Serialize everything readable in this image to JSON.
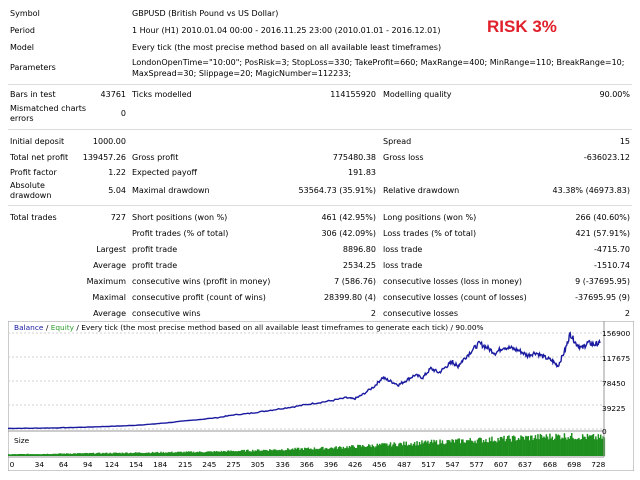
{
  "overlay": {
    "risk_text": "RISK 3%",
    "risk_color": "#e0202a"
  },
  "header": {
    "symbol_label": "Symbol",
    "symbol_value": "GBPUSD (British Pound vs US Dollar)",
    "period_label": "Period",
    "period_value": "1 Hour (H1) 2010.01.04 00:00 - 2016.11.25 23:00 (2010.01.01 - 2016.12.01)",
    "model_label": "Model",
    "model_value": "Every tick (the most precise method based on all available least timeframes)",
    "parameters_label": "Parameters",
    "parameters_line1": "LondonOpenTime=\"10:00\"; PosRisk=3; StopLoss=330; TakeProfit=660; MaxRange=400; MinRange=110; BreakRange=10;",
    "parameters_line2": "MaxSpread=30; Slippage=20; MagicNumber=112233;"
  },
  "stats": {
    "bars_label": "Bars in test",
    "bars_value": "43761",
    "ticks_label": "Ticks modelled",
    "ticks_value": "114155920",
    "quality_label": "Modelling quality",
    "quality_value": "90.00%",
    "mismatch_label_1": "Mismatched charts",
    "mismatch_label_2": "errors",
    "mismatch_value": "0",
    "deposit_label": "Initial deposit",
    "deposit_value": "1000.00",
    "spread_label": "Spread",
    "spread_value": "15",
    "netprofit_label": "Total net profit",
    "netprofit_value": "139457.26",
    "grossprofit_label": "Gross profit",
    "grossprofit_value": "775480.38",
    "grossloss_label": "Gross loss",
    "grossloss_value": "-636023.12",
    "pf_label": "Profit factor",
    "pf_value": "1.22",
    "payoff_label": "Expected payoff",
    "payoff_value": "191.83",
    "absdd_label_1": "Absolute",
    "absdd_label_2": "drawdown",
    "absdd_value": "5.04",
    "maxdd_label": "Maximal drawdown",
    "maxdd_value": "53564.73 (35.91%)",
    "reldd_label": "Relative drawdown",
    "reldd_value": "43.38% (46973.83)",
    "trades_label": "Total trades",
    "trades_value": "727",
    "short_label": "Short positions (won %)",
    "short_value": "461 (42.95%)",
    "long_label": "Long positions (won %)",
    "long_value": "266 (40.60%)",
    "pt_label": "Profit trades (% of total)",
    "pt_value": "306 (42.09%)",
    "lt_label": "Loss trades (% of total)",
    "lt_value": "421 (57.91%)",
    "largest_label": "Largest",
    "lpt_label": "profit trade",
    "lpt_value": "8896.80",
    "llt_label": "loss trade",
    "llt_value": "-4715.70",
    "average_label": "Average",
    "apt_label": "profit trade",
    "apt_value": "2534.25",
    "alt_label": "loss trade",
    "alt_value": "-1510.74",
    "maximum_label": "Maximum",
    "mcw_label": "consecutive wins (profit in money)",
    "mcw_value": "7 (586.76)",
    "mcl_label": "consecutive losses (loss in money)",
    "mcl_value": "9 (-37695.95)",
    "maximal_label": "Maximal",
    "mcp_label": "consecutive profit (count of wins)",
    "mcp_value": "28399.80 (4)",
    "mcll_label": "consecutive losses (count of losses)",
    "mcll_value": "-37695.95 (9)",
    "average2_label": "Average",
    "acw_label": "consecutive wins",
    "acw_value": "2",
    "acl_label": "consecutive losses",
    "acl_value": "2"
  },
  "chart_data": {
    "type": "line",
    "legend": {
      "balance": "Balance",
      "sep1": " / ",
      "equity": "Equity",
      "rest": " / Every tick (the most precise method based on all available least timeframes to generate each tick) / 90.00%"
    },
    "colors": {
      "balance": "#1a1aa0",
      "equity": "#2e9e2e",
      "size_bars": "#1f8f1f",
      "grid": "#d0d0d0"
    },
    "ylim": [
      0,
      156900
    ],
    "yticks": [
      "156900",
      "117675",
      "78450",
      "39225",
      "0"
    ],
    "xticks": [
      "0",
      "34",
      "64",
      "94",
      "124",
      "154",
      "184",
      "215",
      "245",
      "275",
      "305",
      "336",
      "366",
      "396",
      "426",
      "456",
      "487",
      "517",
      "547",
      "577",
      "607",
      "637",
      "668",
      "698",
      "728"
    ],
    "xlim": [
      0,
      740
    ],
    "size_label": "Size",
    "balance_points": [
      [
        0,
        1000
      ],
      [
        30,
        1300
      ],
      [
        60,
        1800
      ],
      [
        90,
        2800
      ],
      [
        120,
        4000
      ],
      [
        150,
        5500
      ],
      [
        180,
        8000
      ],
      [
        200,
        10500
      ],
      [
        230,
        14500
      ],
      [
        260,
        18500
      ],
      [
        280,
        23000
      ],
      [
        300,
        25500
      ],
      [
        320,
        29500
      ],
      [
        340,
        33500
      ],
      [
        360,
        37500
      ],
      [
        380,
        42000
      ],
      [
        400,
        46000
      ],
      [
        420,
        51000
      ],
      [
        430,
        49000
      ],
      [
        440,
        56000
      ],
      [
        455,
        70000
      ],
      [
        465,
        84000
      ],
      [
        475,
        78000
      ],
      [
        485,
        72000
      ],
      [
        495,
        80000
      ],
      [
        505,
        88000
      ],
      [
        515,
        84000
      ],
      [
        525,
        99000
      ],
      [
        535,
        92000
      ],
      [
        545,
        103000
      ],
      [
        552,
        110000
      ],
      [
        558,
        102000
      ],
      [
        565,
        113000
      ],
      [
        575,
        127000
      ],
      [
        585,
        140000
      ],
      [
        595,
        133000
      ],
      [
        605,
        124000
      ],
      [
        615,
        134000
      ],
      [
        625,
        132000
      ],
      [
        635,
        128000
      ],
      [
        645,
        120000
      ],
      [
        655,
        125000
      ],
      [
        665,
        118000
      ],
      [
        675,
        112000
      ],
      [
        683,
        103000
      ],
      [
        692,
        130000
      ],
      [
        698,
        156000
      ],
      [
        705,
        140000
      ],
      [
        713,
        132000
      ],
      [
        720,
        141000
      ],
      [
        728,
        138000
      ],
      [
        735,
        140500
      ]
    ],
    "size_trend": [
      [
        0,
        0.08
      ],
      [
        250,
        0.2
      ],
      [
        400,
        0.38
      ],
      [
        500,
        0.6
      ],
      [
        600,
        0.78
      ],
      [
        690,
        0.95
      ],
      [
        740,
        0.85
      ]
    ]
  }
}
